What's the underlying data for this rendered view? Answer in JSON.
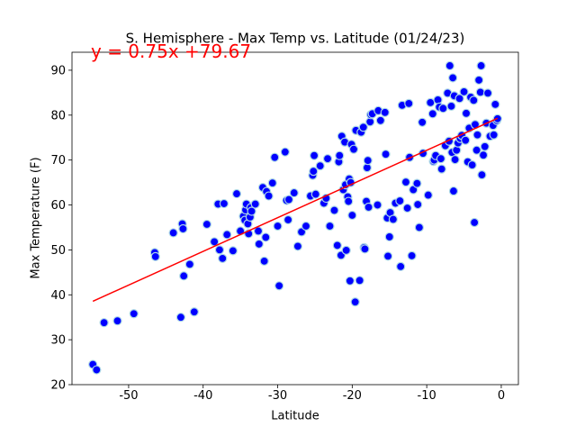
{
  "chart_data": {
    "type": "scatter",
    "title": "S. Hemisphere - Max Temp vs. Latitude (01/24/23)",
    "x_label": "Latitude",
    "y_label": "Max Temperature (F)",
    "annotation": "y = 0.75x +79.67",
    "annotation_color": "#ff0000",
    "color": "#0000ff",
    "edgecolor": "#add8e6",
    "xlim": [
      -57.6,
      2.3
    ],
    "ylim": [
      20,
      94
    ],
    "xticks": [
      -50,
      -40,
      -30,
      -20,
      -10,
      0
    ],
    "yticks": [
      20,
      30,
      40,
      50,
      60,
      70,
      80,
      90
    ],
    "x": [
      -54.8,
      -54.3,
      -53.3,
      -51.5,
      -49.3,
      -46.5,
      -46.4,
      -44,
      -43,
      -42.8,
      -42.7,
      -42.6,
      -41.8,
      -41.2,
      -39.5,
      -38.5,
      -38,
      -37.8,
      -37.4,
      -37.2,
      -36.8,
      -36,
      -35.5,
      -35,
      -34.6,
      -34.4,
      -34.3,
      -34.2,
      -34,
      -33.9,
      -33.7,
      -33.6,
      -33.5,
      -33,
      -32.6,
      -32.5,
      -32,
      -31.8,
      -31.6,
      -31.5,
      -31.2,
      -30.7,
      -30.4,
      -30,
      -29.8,
      -29,
      -28.8,
      -28.6,
      -28.5,
      -27.8,
      -27.3,
      -26.8,
      -26.2,
      -25.6,
      -25.3,
      -25.2,
      -25.1,
      -24.9,
      -24.3,
      -23.8,
      -23.5,
      -23.3,
      -23,
      -22.4,
      -22,
      -21.8,
      -21.7,
      -21.5,
      -21.4,
      -21.2,
      -21,
      -20.9,
      -20.8,
      -20.6,
      -20.5,
      -20.4,
      -20.3,
      -20.2,
      -20.1,
      -20,
      -19.8,
      -19.6,
      -19.5,
      -19,
      -18.8,
      -18.5,
      -18.4,
      -18.3,
      -18.1,
      -18,
      -17.9,
      -17.8,
      -17.6,
      -17.5,
      -17.3,
      -16.6,
      -16.5,
      -16.2,
      -15.6,
      -15.5,
      -15.3,
      -15,
      -14.9,
      -15.2,
      -14.5,
      -14.2,
      -13.6,
      -13.5,
      -13.3,
      -12.8,
      -12.6,
      -12.4,
      -12.3,
      -12,
      -11.8,
      -11.3,
      -11.2,
      -11,
      -10.6,
      -10.5,
      -9.8,
      -9.5,
      -9.2,
      -9.1,
      -9,
      -8.8,
      -8.5,
      -8.3,
      -8.1,
      -8,
      -7.8,
      -7.5,
      -7.2,
      -7,
      -6.9,
      -6.7,
      -6.6,
      -6.5,
      -6.4,
      -6.3,
      -6.2,
      -6,
      -5.8,
      -5.6,
      -5.5,
      -5.3,
      -5,
      -4.8,
      -4.7,
      -4.5,
      -4.3,
      -4.1,
      -3.9,
      -3.7,
      -3.6,
      -3.5,
      -3.3,
      -3.2,
      -3,
      -2.8,
      -2.7,
      -2.6,
      -2.4,
      -2.2,
      -2,
      -1.8,
      -1.5,
      -1.1,
      -1,
      -0.8,
      -0.6,
      -0.5
    ],
    "values": [
      24.5,
      23.3,
      33.8,
      34.2,
      35.8,
      49.4,
      48.5,
      53.8,
      35,
      55.8,
      54.7,
      44.2,
      46.8,
      36.2,
      55.7,
      51.8,
      60.2,
      50,
      48.1,
      60.3,
      53.4,
      49.8,
      62.5,
      54.2,
      57.5,
      56.6,
      58.9,
      60.2,
      55.8,
      53.6,
      57.3,
      59.4,
      58.6,
      60.2,
      54.2,
      51.3,
      63.9,
      47.5,
      52.8,
      63,
      62,
      64.9,
      70.6,
      55.3,
      42,
      71.8,
      61,
      56.7,
      61.2,
      62.7,
      50.8,
      54,
      55.3,
      62,
      66.6,
      67.5,
      71,
      62.4,
      68.7,
      60.4,
      61.5,
      70.3,
      55.3,
      58.8,
      51,
      69.6,
      71,
      48.8,
      75.3,
      63.4,
      74,
      64.5,
      49.9,
      61.8,
      60.8,
      65.8,
      43.1,
      65,
      73.5,
      57.7,
      72.4,
      38.4,
      76.6,
      43.2,
      76.2,
      77.3,
      50.5,
      50.2,
      60.8,
      68.3,
      69.9,
      59.5,
      78.5,
      80.1,
      80.3,
      60,
      81,
      78.8,
      80.6,
      71.3,
      57.1,
      52.9,
      58.3,
      48.6,
      56.8,
      60.4,
      60.9,
      46.3,
      82.2,
      65.1,
      59.3,
      82.6,
      70.6,
      48.7,
      63.4,
      64.8,
      60.1,
      55,
      78.4,
      71.5,
      62.2,
      82.8,
      80.3,
      69.7,
      70,
      71,
      83.4,
      81.8,
      70.3,
      68,
      81.5,
      73.2,
      84.9,
      74.2,
      91,
      82,
      71.7,
      88.3,
      63.1,
      84.3,
      70.1,
      72.2,
      73.8,
      83.7,
      74.8,
      75.5,
      85.2,
      74.4,
      80.4,
      69.6,
      77.1,
      84,
      68.9,
      83.3,
      56.1,
      77.9,
      72.2,
      75.6,
      87.8,
      85.1,
      91,
      66.7,
      71.1,
      73,
      78.2,
      84.9,
      75.3,
      77.7,
      75.6,
      82.4,
      78.8,
      79.2
    ],
    "fit_line": {
      "color": "#ff0000",
      "x": [
        -54.8,
        -0.5
      ],
      "values": [
        38.57,
        79.3
      ]
    }
  }
}
